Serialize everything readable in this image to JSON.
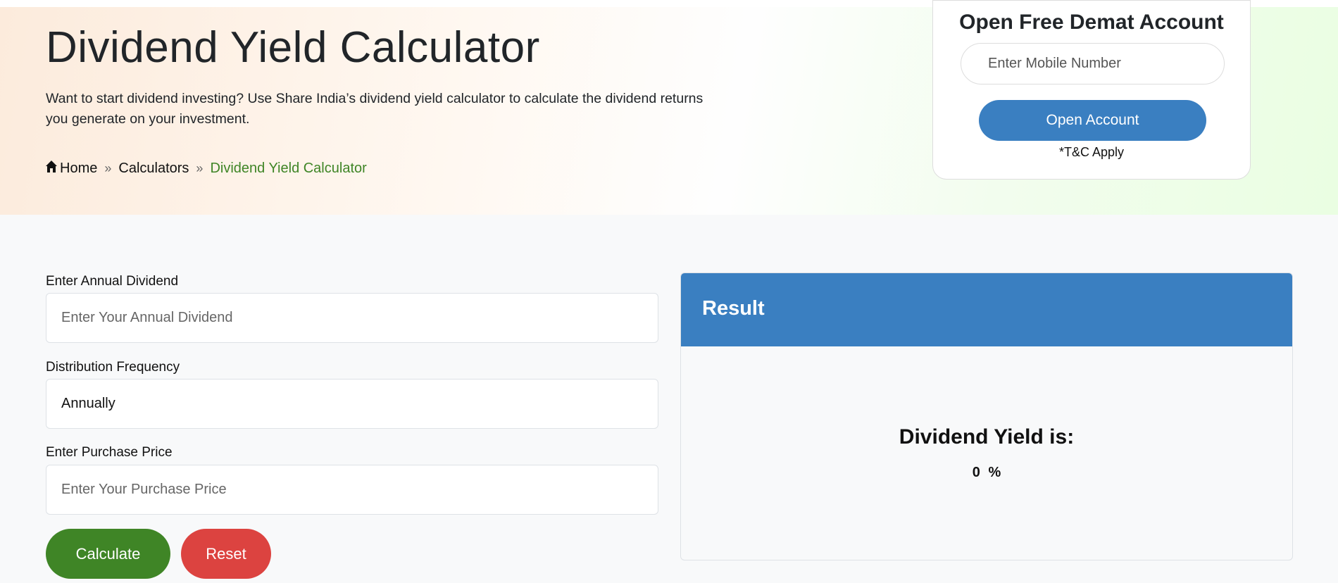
{
  "hero": {
    "title": "Dividend Yield Calculator",
    "description": "Want to start dividend investing? Use Share India’s dividend yield calculator to calculate the dividend returns you generate on your investment.",
    "breadcrumb": [
      {
        "label": "Home",
        "icon": "home-icon"
      },
      {
        "label": "Calculators"
      },
      {
        "label": "Dividend Yield Calculator"
      }
    ]
  },
  "signup": {
    "title": "Open Free Demat Account",
    "mobile_placeholder": "Enter Mobile Number",
    "button": "Open Account",
    "terms": "*T&C Apply"
  },
  "form": {
    "annual_dividend": {
      "label": "Enter Annual Dividend",
      "placeholder": "Enter Your Annual Dividend",
      "value": ""
    },
    "frequency": {
      "label": "Distribution Frequency",
      "value": "Annually"
    },
    "purchase_price": {
      "label": "Enter Purchase Price",
      "placeholder": "Enter Your Purchase Price",
      "value": ""
    },
    "calculate": "Calculate",
    "reset": "Reset"
  },
  "result": {
    "title": "Result",
    "label": "Dividend Yield is:",
    "value": "0",
    "unit": "%"
  },
  "colors": {
    "primary": "#3a7fc1",
    "success": "#3f8526",
    "danger": "#dc4340"
  }
}
